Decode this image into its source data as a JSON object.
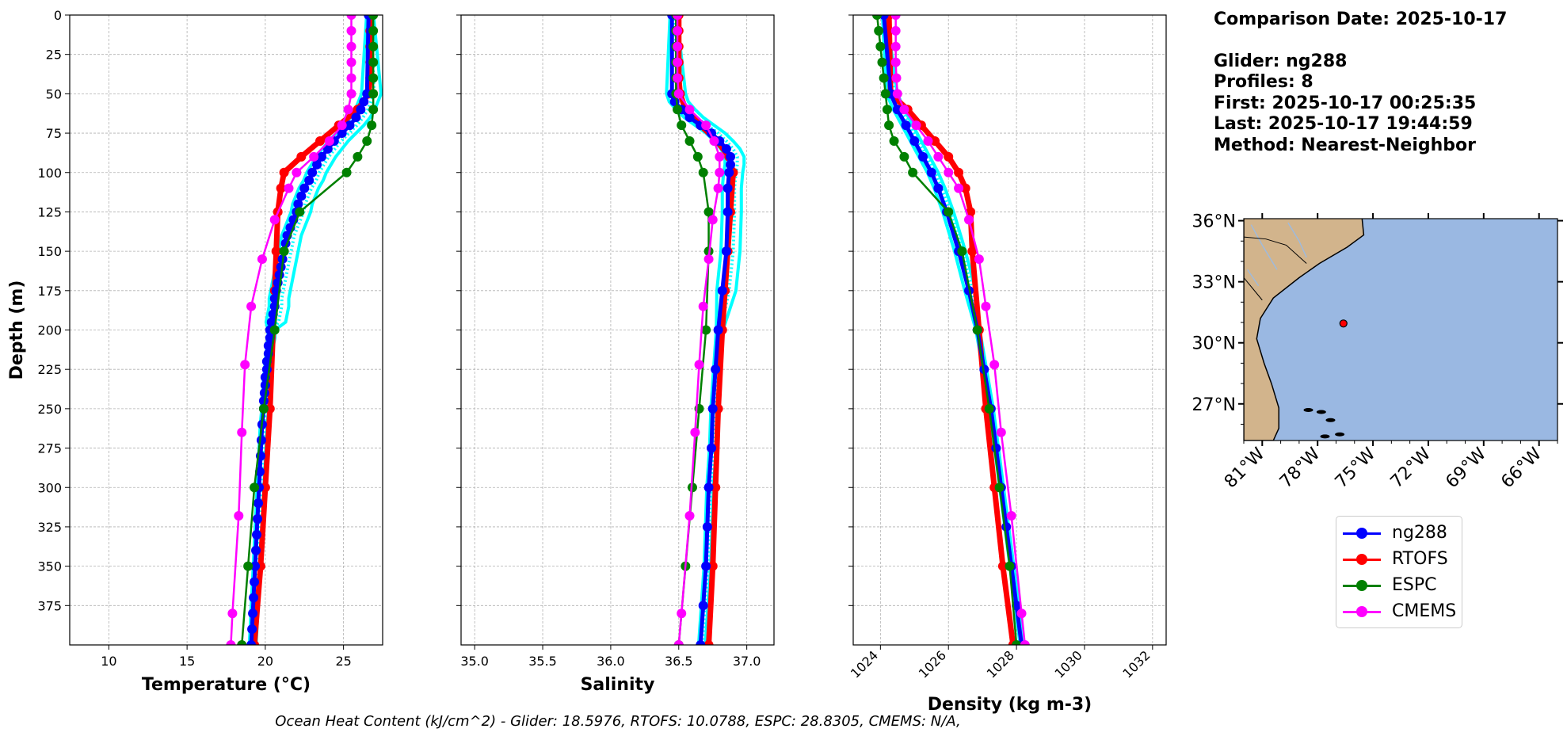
{
  "info": {
    "comparison_date": "Comparison Date: 2025-10-17",
    "glider": "Glider: ng288",
    "profiles": "Profiles: 8",
    "first": "First: 2025-10-17 00:25:35",
    "last": "Last: 2025-10-17 19:44:59",
    "method": "Method: Nearest-Neighbor"
  },
  "footer": "Ocean Heat Content (kJ/cm^2) - Glider: 18.5976,  RTOFS: 10.0788,  ESPC: 28.8305,  CMEMS: N/A,",
  "colors": {
    "ng288": "#0000ff",
    "RTOFS": "#ff0000",
    "ESPC": "#008000",
    "CMEMS": "#ff00ff",
    "glider_profiles": "#00ffff",
    "land": "#d2b48c",
    "ocean": "#9ab8e2"
  },
  "legend": [
    {
      "label": "ng288",
      "color": "#0000ff"
    },
    {
      "label": "RTOFS",
      "color": "#ff0000"
    },
    {
      "label": "ESPC",
      "color": "#008000"
    },
    {
      "label": "CMEMS",
      "color": "#ff00ff"
    }
  ],
  "map": {
    "lat_labels": [
      "36°N",
      "33°N",
      "30°N",
      "27°N"
    ],
    "lon_labels": [
      "81°W",
      "78°W",
      "75°W",
      "72°W",
      "69°W",
      "66°W"
    ],
    "extent": {
      "lon": [
        -82,
        -65
      ],
      "lat": [
        25.2,
        36.1
      ]
    },
    "glider_position": {
      "lon": -76.6,
      "lat": 30.95
    }
  },
  "chart_data": [
    {
      "type": "line",
      "xlabel": "Temperature (°C)",
      "ylabel": "Depth (m)",
      "xlim": [
        7.5,
        27.5
      ],
      "ylim": [
        400,
        0
      ],
      "xticks": [
        10,
        15,
        20,
        25
      ],
      "yticks": [
        0,
        25,
        50,
        75,
        100,
        125,
        150,
        175,
        200,
        225,
        250,
        275,
        300,
        325,
        350,
        375
      ],
      "grid": true,
      "series": [
        {
          "name": "ng288",
          "depth": [
            0,
            50,
            55,
            60,
            65,
            70,
            75,
            80,
            85,
            90,
            95,
            100,
            105,
            110,
            115,
            120,
            125,
            130,
            135,
            140,
            145,
            150,
            155,
            160,
            165,
            170,
            175,
            180,
            185,
            190,
            195,
            200,
            205,
            210,
            215,
            220,
            225,
            230,
            235,
            240,
            245,
            250,
            260,
            270,
            280,
            290,
            300,
            310,
            320,
            330,
            340,
            350,
            360,
            370,
            380,
            390,
            400
          ],
          "values": [
            26.6,
            26.5,
            26.3,
            26.1,
            25.8,
            25.4,
            24.9,
            24.4,
            24.0,
            23.6,
            23.3,
            23.0,
            22.8,
            22.5,
            22.3,
            22.1,
            22.0,
            21.8,
            21.6,
            21.4,
            21.3,
            21.2,
            21.1,
            21.0,
            20.9,
            20.8,
            20.7,
            20.6,
            20.6,
            20.5,
            20.4,
            20.3,
            20.3,
            20.2,
            20.2,
            20.1,
            20.1,
            20.0,
            20.0,
            19.95,
            19.9,
            19.9,
            19.8,
            19.75,
            19.7,
            19.65,
            19.6,
            19.55,
            19.5,
            19.45,
            19.4,
            19.35,
            19.3,
            19.25,
            19.2,
            19.15,
            19.1
          ]
        },
        {
          "name": "RTOFS",
          "depth": [
            0,
            10,
            20,
            30,
            40,
            50,
            60,
            70,
            80,
            90,
            100,
            110,
            125,
            150,
            175,
            200,
            250,
            300,
            350,
            400
          ],
          "values": [
            26.7,
            26.7,
            26.7,
            26.7,
            26.7,
            26.6,
            25.9,
            24.7,
            23.5,
            22.3,
            21.2,
            21.0,
            20.8,
            20.7,
            20.6,
            20.5,
            20.3,
            20.0,
            19.7,
            19.3
          ]
        },
        {
          "name": "ESPC",
          "depth": [
            0,
            10,
            20,
            30,
            40,
            50,
            60,
            70,
            80,
            90,
            100,
            125,
            150,
            200,
            250,
            300,
            350,
            400
          ],
          "values": [
            26.9,
            26.9,
            26.9,
            26.9,
            26.9,
            26.9,
            26.9,
            26.8,
            26.5,
            25.9,
            25.2,
            22.2,
            21.2,
            20.6,
            19.9,
            19.3,
            18.9,
            18.5
          ]
        },
        {
          "name": "CMEMS",
          "depth": [
            0,
            10,
            20,
            30,
            40,
            50,
            60,
            70,
            80,
            90,
            100,
            110,
            130,
            155,
            185,
            222,
            265,
            318,
            380,
            400
          ],
          "values": [
            25.5,
            25.5,
            25.5,
            25.5,
            25.5,
            25.5,
            25.3,
            24.9,
            24.1,
            23.1,
            22.0,
            21.5,
            20.6,
            19.8,
            19.1,
            18.7,
            18.5,
            18.3,
            17.9,
            17.8
          ]
        }
      ]
    },
    {
      "type": "line",
      "xlabel": "Salinity",
      "xlim": [
        34.9,
        37.2
      ],
      "ylim": [
        400,
        0
      ],
      "xticks": [
        35.0,
        35.5,
        36.0,
        36.5,
        37.0
      ],
      "xtick_labels": [
        "35.0",
        "35.5",
        "36.0",
        "36.5",
        "37.0"
      ],
      "grid": true,
      "series": [
        {
          "name": "ng288",
          "depth": [
            0,
            50,
            55,
            60,
            65,
            70,
            75,
            80,
            85,
            90,
            95,
            100,
            110,
            125,
            150,
            175,
            200,
            225,
            250,
            275,
            300,
            325,
            350,
            375,
            400
          ],
          "values": [
            36.45,
            36.45,
            36.47,
            36.52,
            36.58,
            36.66,
            36.74,
            36.8,
            36.85,
            36.88,
            36.88,
            36.87,
            36.86,
            36.86,
            36.85,
            36.82,
            36.79,
            36.77,
            36.75,
            36.74,
            36.72,
            36.71,
            36.7,
            36.68,
            36.66
          ]
        },
        {
          "name": "RTOFS",
          "depth": [
            0,
            10,
            20,
            30,
            40,
            50,
            60,
            70,
            80,
            90,
            100,
            125,
            150,
            175,
            200,
            250,
            300,
            350,
            400
          ],
          "values": [
            36.5,
            36.5,
            36.5,
            36.5,
            36.5,
            36.51,
            36.55,
            36.66,
            36.78,
            36.87,
            36.9,
            36.88,
            36.86,
            36.84,
            36.82,
            36.79,
            36.77,
            36.75,
            36.72
          ]
        },
        {
          "name": "ESPC",
          "depth": [
            0,
            10,
            20,
            30,
            40,
            50,
            60,
            70,
            80,
            90,
            100,
            125,
            150,
            200,
            250,
            300,
            350,
            400
          ],
          "values": [
            36.48,
            36.48,
            36.48,
            36.48,
            36.48,
            36.48,
            36.49,
            36.52,
            36.58,
            36.64,
            36.68,
            36.72,
            36.72,
            36.7,
            36.65,
            36.6,
            36.55,
            36.5
          ]
        },
        {
          "name": "CMEMS",
          "depth": [
            0,
            10,
            20,
            30,
            40,
            50,
            60,
            70,
            80,
            90,
            100,
            110,
            130,
            155,
            185,
            222,
            265,
            318,
            380,
            400
          ],
          "values": [
            36.49,
            36.49,
            36.49,
            36.49,
            36.49,
            36.5,
            36.58,
            36.7,
            36.76,
            36.8,
            36.8,
            36.79,
            36.75,
            36.72,
            36.68,
            36.65,
            36.62,
            36.58,
            36.52,
            36.5
          ]
        }
      ]
    },
    {
      "type": "line",
      "xlabel": "Density (kg m-3)",
      "xlim": [
        1023.2,
        1032.4
      ],
      "ylim": [
        400,
        0
      ],
      "xticks": [
        1024,
        1026,
        1028,
        1030,
        1032
      ],
      "grid": true,
      "series": [
        {
          "name": "ng288",
          "depth": [
            0,
            50,
            60,
            70,
            80,
            90,
            100,
            110,
            125,
            150,
            175,
            200,
            225,
            250,
            275,
            300,
            325,
            350,
            375,
            400
          ],
          "values": [
            1024.1,
            1024.3,
            1024.5,
            1024.75,
            1025.0,
            1025.25,
            1025.5,
            1025.7,
            1025.95,
            1026.3,
            1026.6,
            1026.85,
            1027.05,
            1027.25,
            1027.4,
            1027.55,
            1027.7,
            1027.85,
            1028.0,
            1028.15
          ]
        },
        {
          "name": "RTOFS",
          "depth": [
            0,
            50,
            60,
            70,
            80,
            90,
            100,
            110,
            125,
            150,
            200,
            250,
            300,
            350,
            400
          ],
          "values": [
            1024.25,
            1024.3,
            1024.8,
            1025.2,
            1025.6,
            1026.0,
            1026.3,
            1026.5,
            1026.65,
            1026.7,
            1026.9,
            1027.1,
            1027.35,
            1027.6,
            1027.9
          ]
        },
        {
          "name": "ESPC",
          "depth": [
            0,
            10,
            20,
            30,
            40,
            50,
            60,
            70,
            80,
            90,
            100,
            125,
            150,
            200,
            250,
            300,
            350,
            400
          ],
          "values": [
            1023.9,
            1023.95,
            1024.0,
            1024.05,
            1024.1,
            1024.15,
            1024.2,
            1024.25,
            1024.4,
            1024.7,
            1024.95,
            1026.0,
            1026.4,
            1026.85,
            1027.2,
            1027.5,
            1027.8,
            1028.0
          ]
        },
        {
          "name": "CMEMS",
          "depth": [
            0,
            10,
            20,
            30,
            40,
            50,
            60,
            70,
            80,
            90,
            100,
            110,
            130,
            155,
            185,
            222,
            265,
            318,
            380,
            400
          ],
          "values": [
            1024.45,
            1024.45,
            1024.45,
            1024.45,
            1024.47,
            1024.5,
            1024.7,
            1025.05,
            1025.4,
            1025.7,
            1026.0,
            1026.3,
            1026.6,
            1026.9,
            1027.1,
            1027.35,
            1027.55,
            1027.85,
            1028.15,
            1028.25
          ]
        }
      ]
    }
  ]
}
